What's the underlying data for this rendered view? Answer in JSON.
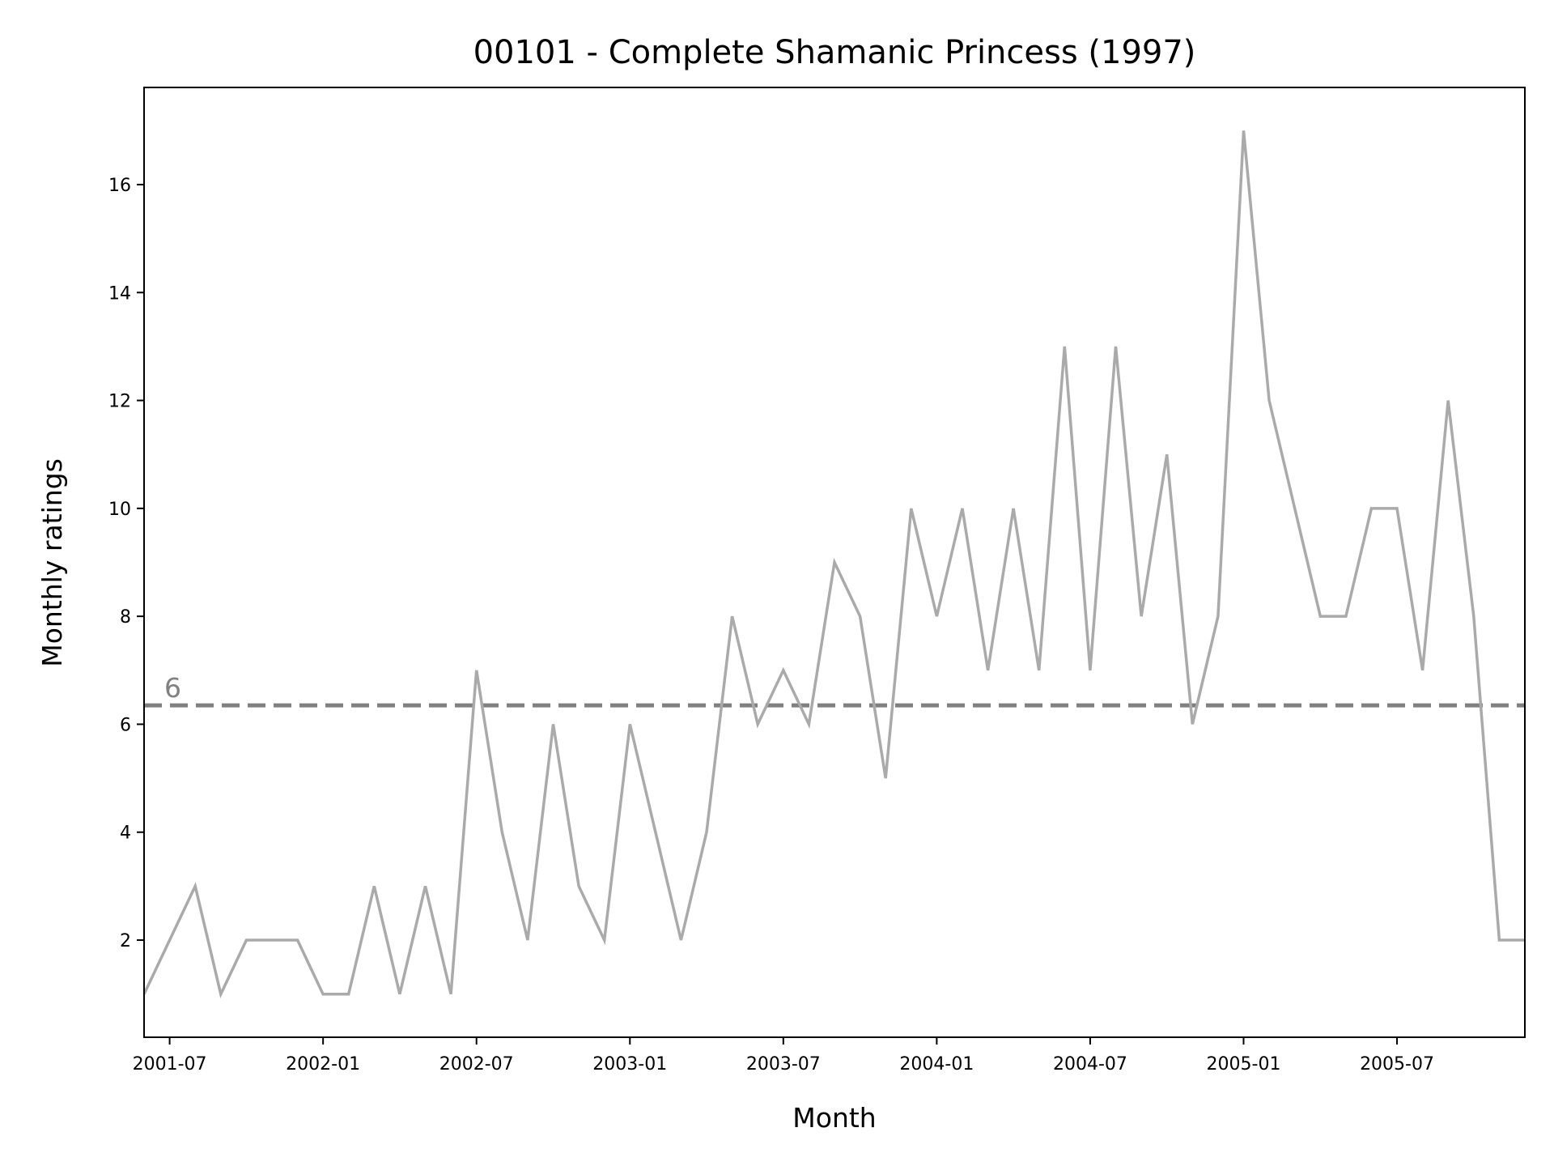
{
  "chart_data": {
    "type": "line",
    "title": "00101 - Complete Shamanic Princess (1997)",
    "xlabel": "Month",
    "ylabel": "Monthly ratings",
    "x_tick_labels": [
      "2001-07",
      "2002-01",
      "2002-07",
      "2003-01",
      "2003-07",
      "2004-01",
      "2004-07",
      "2005-01",
      "2005-07"
    ],
    "x_tick_months": [
      "2001-07",
      "2002-01",
      "2002-07",
      "2003-01",
      "2003-07",
      "2004-01",
      "2004-07",
      "2005-01",
      "2005-07"
    ],
    "xlim": [
      "2001-06",
      "2005-12"
    ],
    "y_ticks": [
      2,
      4,
      6,
      8,
      10,
      12,
      14,
      16
    ],
    "ylim": [
      0.2,
      17.8
    ],
    "grid": false,
    "line_color": "#aaaaaa",
    "reference_line": {
      "value": 6.35,
      "label": "6",
      "color": "#808080",
      "style": "dashed"
    },
    "series": [
      {
        "x": [
          "2001-06",
          "2001-07",
          "2001-08",
          "2001-09",
          "2001-10",
          "2001-11",
          "2001-12",
          "2002-01",
          "2002-02",
          "2002-03",
          "2002-04",
          "2002-05",
          "2002-06",
          "2002-07",
          "2002-08",
          "2002-09",
          "2002-10",
          "2002-11",
          "2002-12",
          "2003-01",
          "2003-02",
          "2003-03",
          "2003-04",
          "2003-05",
          "2003-06",
          "2003-07",
          "2003-08",
          "2003-09",
          "2003-10",
          "2003-11",
          "2003-12",
          "2004-01",
          "2004-02",
          "2004-03",
          "2004-04",
          "2004-05",
          "2004-06",
          "2004-07",
          "2004-08",
          "2004-09",
          "2004-10",
          "2004-11",
          "2004-12",
          "2005-01",
          "2005-02",
          "2005-03",
          "2005-04",
          "2005-05",
          "2005-06",
          "2005-07",
          "2005-08",
          "2005-09",
          "2005-10",
          "2005-11",
          "2005-12"
        ],
        "values": [
          1,
          2,
          3,
          1,
          2,
          2,
          2,
          1,
          1,
          3,
          1,
          3,
          1,
          7,
          4,
          2,
          6,
          3,
          2,
          6,
          4,
          2,
          4,
          8,
          6,
          7,
          6,
          9,
          8,
          5,
          10,
          8,
          10,
          7,
          10,
          7,
          13,
          7,
          13,
          8,
          11,
          6,
          8,
          17,
          12,
          10,
          8,
          8,
          10,
          10,
          7,
          12,
          8,
          2,
          2
        ]
      }
    ]
  }
}
